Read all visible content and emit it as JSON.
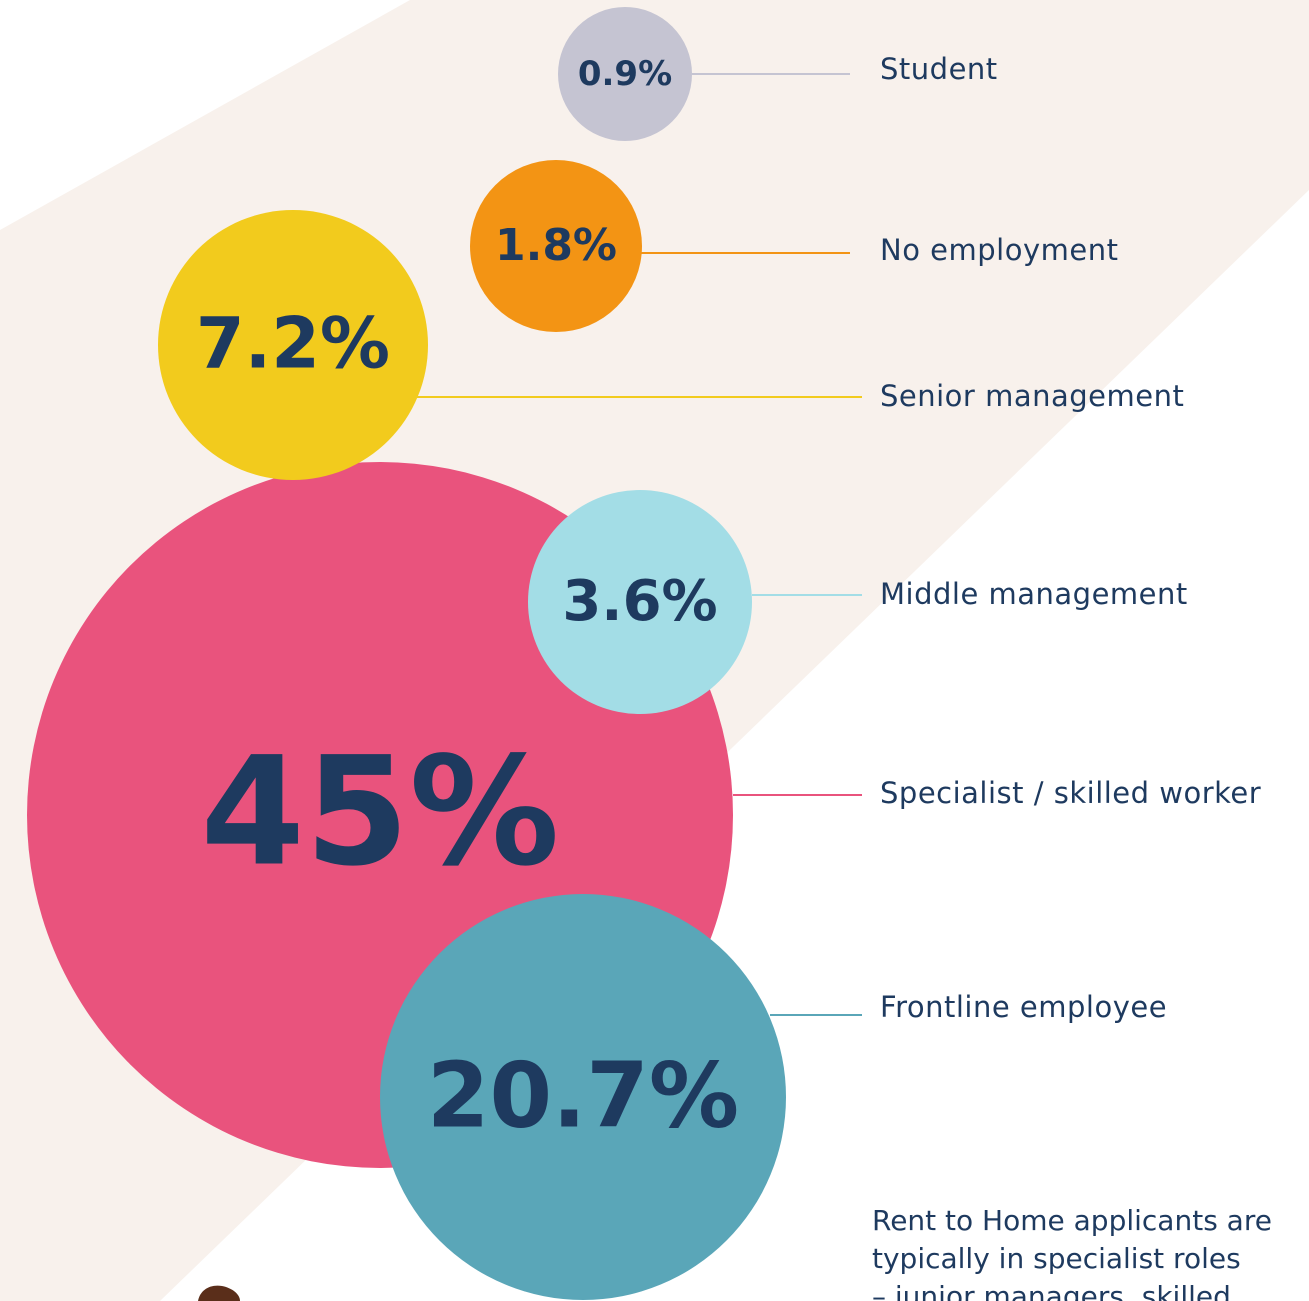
{
  "chart_data": {
    "type": "bubble",
    "categories": [
      "Student",
      "No employment",
      "Senior management",
      "Middle management",
      "Specialist / skilled worker",
      "Frontline employee"
    ],
    "values": [
      0.9,
      1.8,
      7.2,
      3.6,
      45,
      20.7
    ],
    "value_labels": [
      "0.9%",
      "1.8%",
      "7.2%",
      "3.6%",
      "45%",
      "20.7%"
    ],
    "colors": [
      "#c5c4d2",
      "#f39414",
      "#f2cb1d",
      "#a3dde6",
      "#e9537d",
      "#5aa6b8"
    ],
    "note": [
      "Rent to Home applicants are",
      "typically in specialist roles",
      "– junior managers, skilled"
    ]
  }
}
